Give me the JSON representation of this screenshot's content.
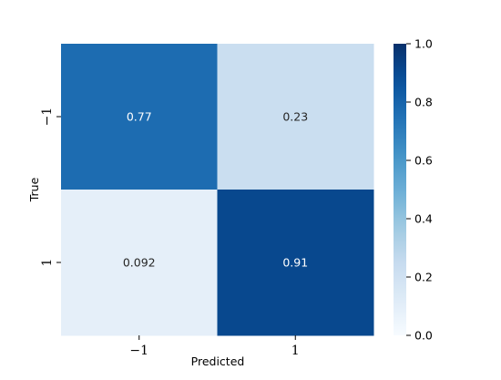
{
  "chart_data": {
    "type": "heatmap",
    "x_label": "Predicted",
    "y_label": "True",
    "x_tick_labels": [
      "−1",
      "1"
    ],
    "y_tick_labels": [
      "−1",
      "1"
    ],
    "values": [
      [
        0.77,
        0.23
      ],
      [
        0.092,
        0.91
      ]
    ],
    "cell_labels": [
      [
        "0.77",
        "0.23"
      ],
      [
        "0.092",
        "0.91"
      ]
    ],
    "vmin": 0.0,
    "vmax": 1.0,
    "colormap": "Blues",
    "colorbar": {
      "ticks": [
        0.0,
        0.2,
        0.4,
        0.6,
        0.8,
        1.0
      ],
      "tick_labels": [
        "0.0",
        "0.2",
        "0.4",
        "0.6",
        "0.8",
        "1.0"
      ]
    }
  }
}
